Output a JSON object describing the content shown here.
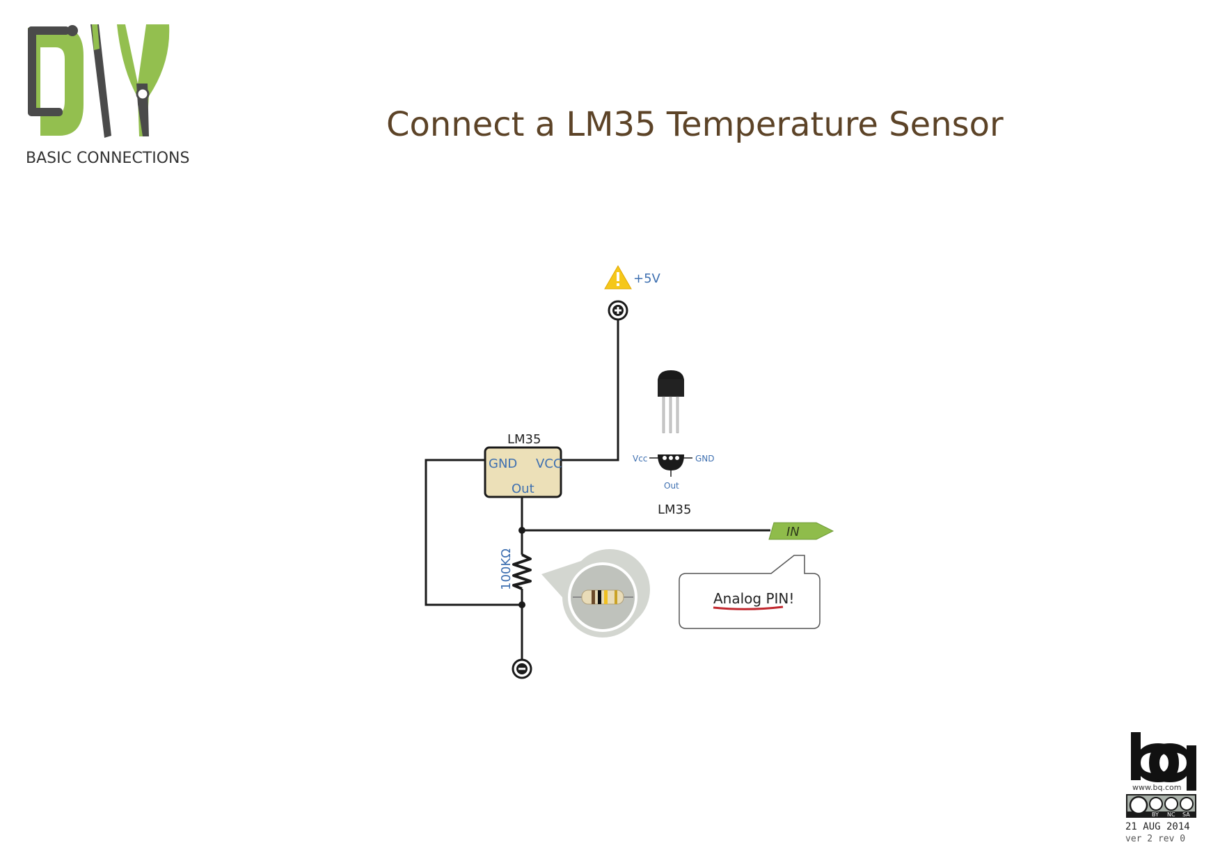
{
  "logo": {
    "text": "DIY",
    "caption": "BASIC CONNECTIONS"
  },
  "title": "Connect a LM35 Temperature Sensor",
  "schematic": {
    "supply_label": "+5V",
    "chip_name": "LM35",
    "chip_pins": {
      "gnd": "GND",
      "vcc": "VCC",
      "out": "Out"
    },
    "resistor_value": "100KΩ",
    "in_tag": "IN",
    "note": "Analog PIN!",
    "pinout": {
      "name": "LM35",
      "vcc": "Vcc",
      "gnd": "GND",
      "out": "Out"
    }
  },
  "footer": {
    "brand": "bq",
    "url": "www.bq.com",
    "license": [
      "BY",
      "NC",
      "SA"
    ],
    "date": "21 AUG 2014",
    "version": "ver 2 rev 0"
  },
  "colors": {
    "logo_green": "#93bf4f",
    "logo_gray": "#4a4a4a",
    "title_brown": "#5c4327",
    "chip_fill": "#ece0b8",
    "pin_blue": "#3d6fb0",
    "tag_green": "#8fbc4b",
    "warning_yellow": "#f5c71a",
    "note_underline": "#c0262d"
  }
}
